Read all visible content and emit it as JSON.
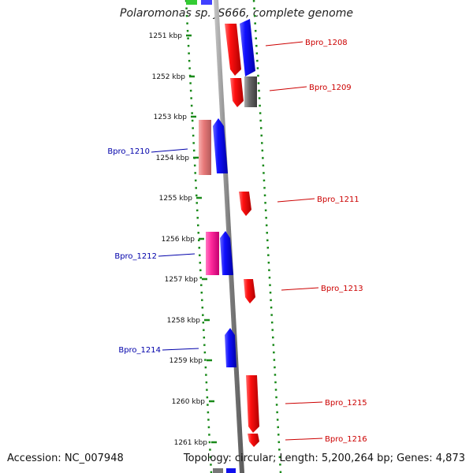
{
  "map": {
    "title": "Polaromonas sp. JS666, complete genome",
    "accession_label": "Accession: NC_007948",
    "topology_label": "Topology: circular; Length: 5,200,264 bp; Genes: 4,873"
  },
  "ticks": [
    "1251 kbp",
    "1252 kbp",
    "1253 kbp",
    "1254 kbp",
    "1255 kbp",
    "1256 kbp",
    "1257 kbp",
    "1258 kbp",
    "1259 kbp",
    "1260 kbp",
    "1261 kbp"
  ],
  "gene_labels": [
    {
      "name": "Bpro_1208",
      "side": "right"
    },
    {
      "name": "Bpro_1209",
      "side": "right"
    },
    {
      "name": "Bpro_1210",
      "side": "left"
    },
    {
      "name": "Bpro_1211",
      "side": "right"
    },
    {
      "name": "Bpro_1212",
      "side": "left"
    },
    {
      "name": "Bpro_1213",
      "side": "right"
    },
    {
      "name": "Bpro_1214",
      "side": "left"
    },
    {
      "name": "Bpro_1215",
      "side": "right"
    },
    {
      "name": "Bpro_1216",
      "side": "right"
    }
  ],
  "colors": {
    "backbone": "#8a8a8a",
    "tick": "#1a8a1a",
    "dots": "#1a8a1a",
    "label_right": "#cc0000",
    "label_left": "#0000aa",
    "red": "#ee0000",
    "blue": "#0000ee",
    "pink_salmon": "#e88080",
    "magenta": "#ff2299",
    "gray": "#666666",
    "green": "#33cc33"
  }
}
